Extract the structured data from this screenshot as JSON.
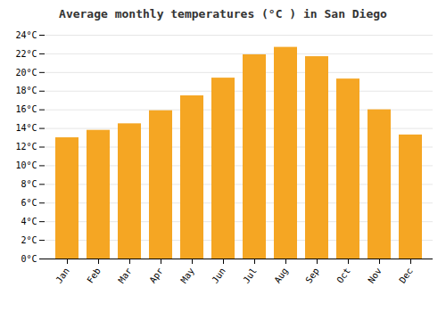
{
  "chart_data": {
    "type": "bar",
    "title": "Average monthly temperatures (°C ) in San Diego",
    "categories": [
      "Jan",
      "Feb",
      "Mar",
      "Apr",
      "May",
      "Jun",
      "Jul",
      "Aug",
      "Sep",
      "Oct",
      "Nov",
      "Dec"
    ],
    "values": [
      13.0,
      13.8,
      14.5,
      15.9,
      17.5,
      19.4,
      21.9,
      22.7,
      21.7,
      19.3,
      16.0,
      13.3
    ],
    "color": "#F5A623",
    "ylim": [
      0,
      24
    ],
    "yticks": [
      {
        "value": 0,
        "label": "0°C"
      },
      {
        "value": 2,
        "label": "2°C"
      },
      {
        "value": 4,
        "label": "4°C"
      },
      {
        "value": 6,
        "label": "6°C"
      },
      {
        "value": 8,
        "label": "8°C"
      },
      {
        "value": 10,
        "label": "10°C"
      },
      {
        "value": 12,
        "label": "12°C"
      },
      {
        "value": 14,
        "label": "14°C"
      },
      {
        "value": 16,
        "label": "16°C"
      },
      {
        "value": 18,
        "label": "18°C"
      },
      {
        "value": 20,
        "label": "20°C"
      },
      {
        "value": 22,
        "label": "22°C"
      },
      {
        "value": 24,
        "label": "24°C"
      }
    ],
    "grid": true
  }
}
